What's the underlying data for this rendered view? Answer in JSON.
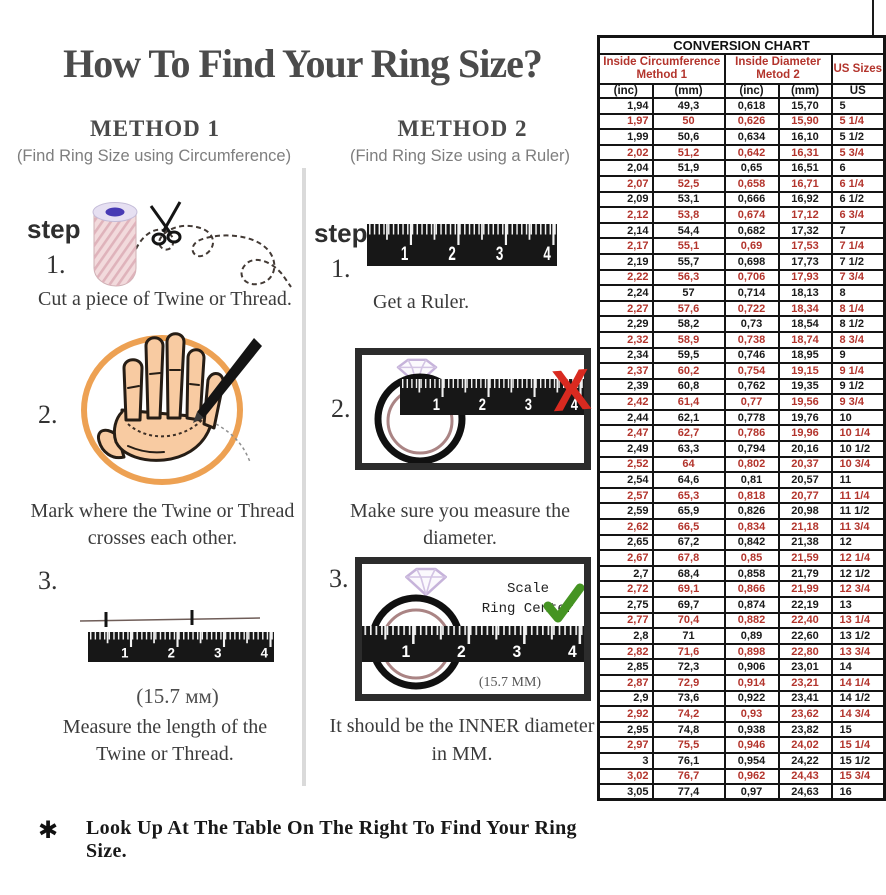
{
  "title": "How To Find Your Ring Size?",
  "methods": {
    "method1": {
      "heading": "METHOD 1",
      "subtitle": "(Find Ring Size using Circumference)",
      "step_label": "step",
      "steps": [
        {
          "number": "1.",
          "text": "Cut a piece of  Twine or Thread."
        },
        {
          "number": "2.",
          "text_line1": "Mark where the Twine or Thread",
          "text_line2": "crosses each other."
        },
        {
          "number": "3.",
          "measurement": "(15.7 мм)",
          "text_line1": "Measure the length of the",
          "text_line2": "Twine or Thread."
        }
      ]
    },
    "method2": {
      "heading": "METHOD 2",
      "subtitle": "(Find Ring Size using a Ruler)",
      "step_label": "step",
      "steps": [
        {
          "number": "1.",
          "text": "Get a Ruler."
        },
        {
          "number": "2.",
          "text": "Make sure you measure the diameter."
        },
        {
          "number": "3.",
          "scale_label_line1": "Scale",
          "scale_label_line2": "Ring Center",
          "measurement": "(15.7 MM)",
          "text_line1": "It should be the INNER diameter",
          "text_line2": "in MM."
        }
      ]
    }
  },
  "ruler": {
    "numbers": [
      "1",
      "2",
      "3",
      "4"
    ]
  },
  "footnote": {
    "marker": "✱",
    "text": "Look Up At The Table On The Right To Find Your Ring Size."
  },
  "conversion_chart": {
    "title": "CONVERSION CHART",
    "column_groups": [
      {
        "line1": "Inside Circumference",
        "line2": "Method 1"
      },
      {
        "line1": "Inside Diameter",
        "line2": "Metod 2"
      },
      {
        "line1": "US Sizes",
        "line2": ""
      }
    ],
    "subheaders": [
      "(inc)",
      "(mm)",
      "(inc)",
      "(mm)",
      "US"
    ],
    "accent_color": "#b3342c",
    "rows": [
      [
        "1,94",
        "49,3",
        "0,618",
        "15,70",
        "5"
      ],
      [
        "1,97",
        "50",
        "0,626",
        "15,90",
        "5 1/4"
      ],
      [
        "1,99",
        "50,6",
        "0,634",
        "16,10",
        "5 1/2"
      ],
      [
        "2,02",
        "51,2",
        "0,642",
        "16,31",
        "5 3/4"
      ],
      [
        "2,04",
        "51,9",
        "0,65",
        "16,51",
        "6"
      ],
      [
        "2,07",
        "52,5",
        "0,658",
        "16,71",
        "6 1/4"
      ],
      [
        "2,09",
        "53,1",
        "0,666",
        "16,92",
        "6 1/2"
      ],
      [
        "2,12",
        "53,8",
        "0,674",
        "17,12",
        "6 3/4"
      ],
      [
        "2,14",
        "54,4",
        "0,682",
        "17,32",
        "7"
      ],
      [
        "2,17",
        "55,1",
        "0,69",
        "17,53",
        "7 1/4"
      ],
      [
        "2,19",
        "55,7",
        "0,698",
        "17,73",
        "7 1/2"
      ],
      [
        "2,22",
        "56,3",
        "0,706",
        "17,93",
        "7 3/4"
      ],
      [
        "2,24",
        "57",
        "0,714",
        "18,13",
        "8"
      ],
      [
        "2,27",
        "57,6",
        "0,722",
        "18,34",
        "8 1/4"
      ],
      [
        "2,29",
        "58,2",
        "0,73",
        "18,54",
        "8 1/2"
      ],
      [
        "2,32",
        "58,9",
        "0,738",
        "18,74",
        "8 3/4"
      ],
      [
        "2,34",
        "59,5",
        "0,746",
        "18,95",
        "9"
      ],
      [
        "2,37",
        "60,2",
        "0,754",
        "19,15",
        "9 1/4"
      ],
      [
        "2,39",
        "60,8",
        "0,762",
        "19,35",
        "9 1/2"
      ],
      [
        "2,42",
        "61,4",
        "0,77",
        "19,56",
        "9 3/4"
      ],
      [
        "2,44",
        "62,1",
        "0,778",
        "19,76",
        "10"
      ],
      [
        "2,47",
        "62,7",
        "0,786",
        "19,96",
        "10 1/4"
      ],
      [
        "2,49",
        "63,3",
        "0,794",
        "20,16",
        "10 1/2"
      ],
      [
        "2,52",
        "64",
        "0,802",
        "20,37",
        "10 3/4"
      ],
      [
        "2,54",
        "64,6",
        "0,81",
        "20,57",
        "11"
      ],
      [
        "2,57",
        "65,3",
        "0,818",
        "20,77",
        "11 1/4"
      ],
      [
        "2,59",
        "65,9",
        "0,826",
        "20,98",
        "11 1/2"
      ],
      [
        "2,62",
        "66,5",
        "0,834",
        "21,18",
        "11 3/4"
      ],
      [
        "2,65",
        "67,2",
        "0,842",
        "21,38",
        "12"
      ],
      [
        "2,67",
        "67,8",
        "0,85",
        "21,59",
        "12 1/4"
      ],
      [
        "2,7",
        "68,4",
        "0,858",
        "21,79",
        "12 1/2"
      ],
      [
        "2,72",
        "69,1",
        "0,866",
        "21,99",
        "12 3/4"
      ],
      [
        "2,75",
        "69,7",
        "0,874",
        "22,19",
        "13"
      ],
      [
        "2,77",
        "70,4",
        "0,882",
        "22,40",
        "13 1/4"
      ],
      [
        "2,8",
        "71",
        "0,89",
        "22,60",
        "13 1/2"
      ],
      [
        "2,82",
        "71,6",
        "0,898",
        "22,80",
        "13 3/4"
      ],
      [
        "2,85",
        "72,3",
        "0,906",
        "23,01",
        "14"
      ],
      [
        "2,87",
        "72,9",
        "0,914",
        "23,21",
        "14 1/4"
      ],
      [
        "2,9",
        "73,6",
        "0,922",
        "23,41",
        "14 1/2"
      ],
      [
        "2,92",
        "74,2",
        "0,93",
        "23,62",
        "14 3/4"
      ],
      [
        "2,95",
        "74,8",
        "0,938",
        "23,82",
        "15"
      ],
      [
        "2,97",
        "75,5",
        "0,946",
        "24,02",
        "15 1/4"
      ],
      [
        "3",
        "76,1",
        "0,954",
        "24,22",
        "15 1/2"
      ],
      [
        "3,02",
        "76,7",
        "0,962",
        "24,43",
        "15 3/4"
      ],
      [
        "3,05",
        "77,4",
        "0,97",
        "24,63",
        "16"
      ]
    ]
  }
}
